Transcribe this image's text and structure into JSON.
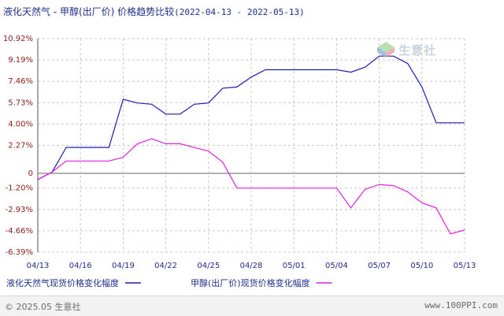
{
  "chart_data": {
    "type": "line",
    "title": "液化天然气 - 甲醇(出厂价) 价格趋势比较",
    "date_range": "(2022-04-13 - 2022-05-13)",
    "xlabel": "",
    "ylabel": "",
    "y_ticks": [
      "10.92%",
      "9.19%",
      "7.46%",
      "5.73%",
      "4.00%",
      "2.27%",
      "0",
      "-1.20%",
      "-2.93%",
      "-4.66%",
      "-6.39%"
    ],
    "y_tick_values": [
      10.92,
      9.19,
      7.46,
      5.73,
      4.0,
      2.27,
      0,
      -1.2,
      -2.93,
      -4.66,
      -6.39
    ],
    "ylim": [
      -6.39,
      10.92
    ],
    "xlim": [
      0,
      30
    ],
    "x_ticks": [
      "04/13",
      "04/16",
      "04/19",
      "04/22",
      "04/25",
      "04/28",
      "05/01",
      "05/04",
      "05/07",
      "05/10",
      "05/13"
    ],
    "x_tick_values": [
      0,
      3,
      6,
      9,
      12,
      15,
      18,
      21,
      24,
      27,
      30
    ],
    "grid": true,
    "legend_position": "bottom",
    "series": [
      {
        "name": "液化天然气现货价格变化幅度",
        "color": "#1c1cb4",
        "x": [
          0,
          1,
          2,
          3,
          4,
          5,
          6,
          7,
          8,
          9,
          10,
          11,
          12,
          13,
          14,
          15,
          16,
          17,
          18,
          19,
          20,
          21,
          22,
          23,
          24,
          25,
          26,
          27,
          28,
          29,
          30
        ],
        "y": [
          -0.5,
          0.1,
          2.1,
          2.1,
          2.1,
          2.1,
          6.0,
          5.7,
          5.6,
          4.8,
          4.8,
          5.6,
          5.7,
          6.9,
          7.0,
          7.8,
          8.4,
          8.4,
          8.4,
          8.4,
          8.4,
          8.4,
          8.2,
          8.6,
          9.5,
          9.5,
          8.9,
          7.0,
          4.1,
          4.1,
          4.1
        ]
      },
      {
        "name": "甲醇(出厂价)现货价格变化幅度",
        "color": "#e020e0",
        "x": [
          0,
          1,
          2,
          3,
          4,
          5,
          6,
          7,
          8,
          9,
          10,
          11,
          12,
          13,
          14,
          15,
          16,
          17,
          18,
          19,
          20,
          21,
          22,
          23,
          24,
          25,
          26,
          27,
          28,
          29,
          30
        ],
        "y": [
          -0.5,
          0.1,
          1.0,
          1.0,
          1.0,
          1.0,
          1.3,
          2.4,
          2.8,
          2.4,
          2.4,
          2.1,
          1.8,
          0.9,
          -1.2,
          -1.2,
          -1.2,
          -1.2,
          -1.2,
          -1.2,
          -1.2,
          -1.2,
          -2.8,
          -1.3,
          -0.9,
          -1.0,
          -1.5,
          -2.4,
          -2.8,
          -4.9,
          -4.6
        ]
      }
    ]
  },
  "footer": {
    "copyright": "© 2025.05 生意社",
    "url": "www.100PPI.com"
  },
  "watermark": {
    "text": "生意社"
  }
}
